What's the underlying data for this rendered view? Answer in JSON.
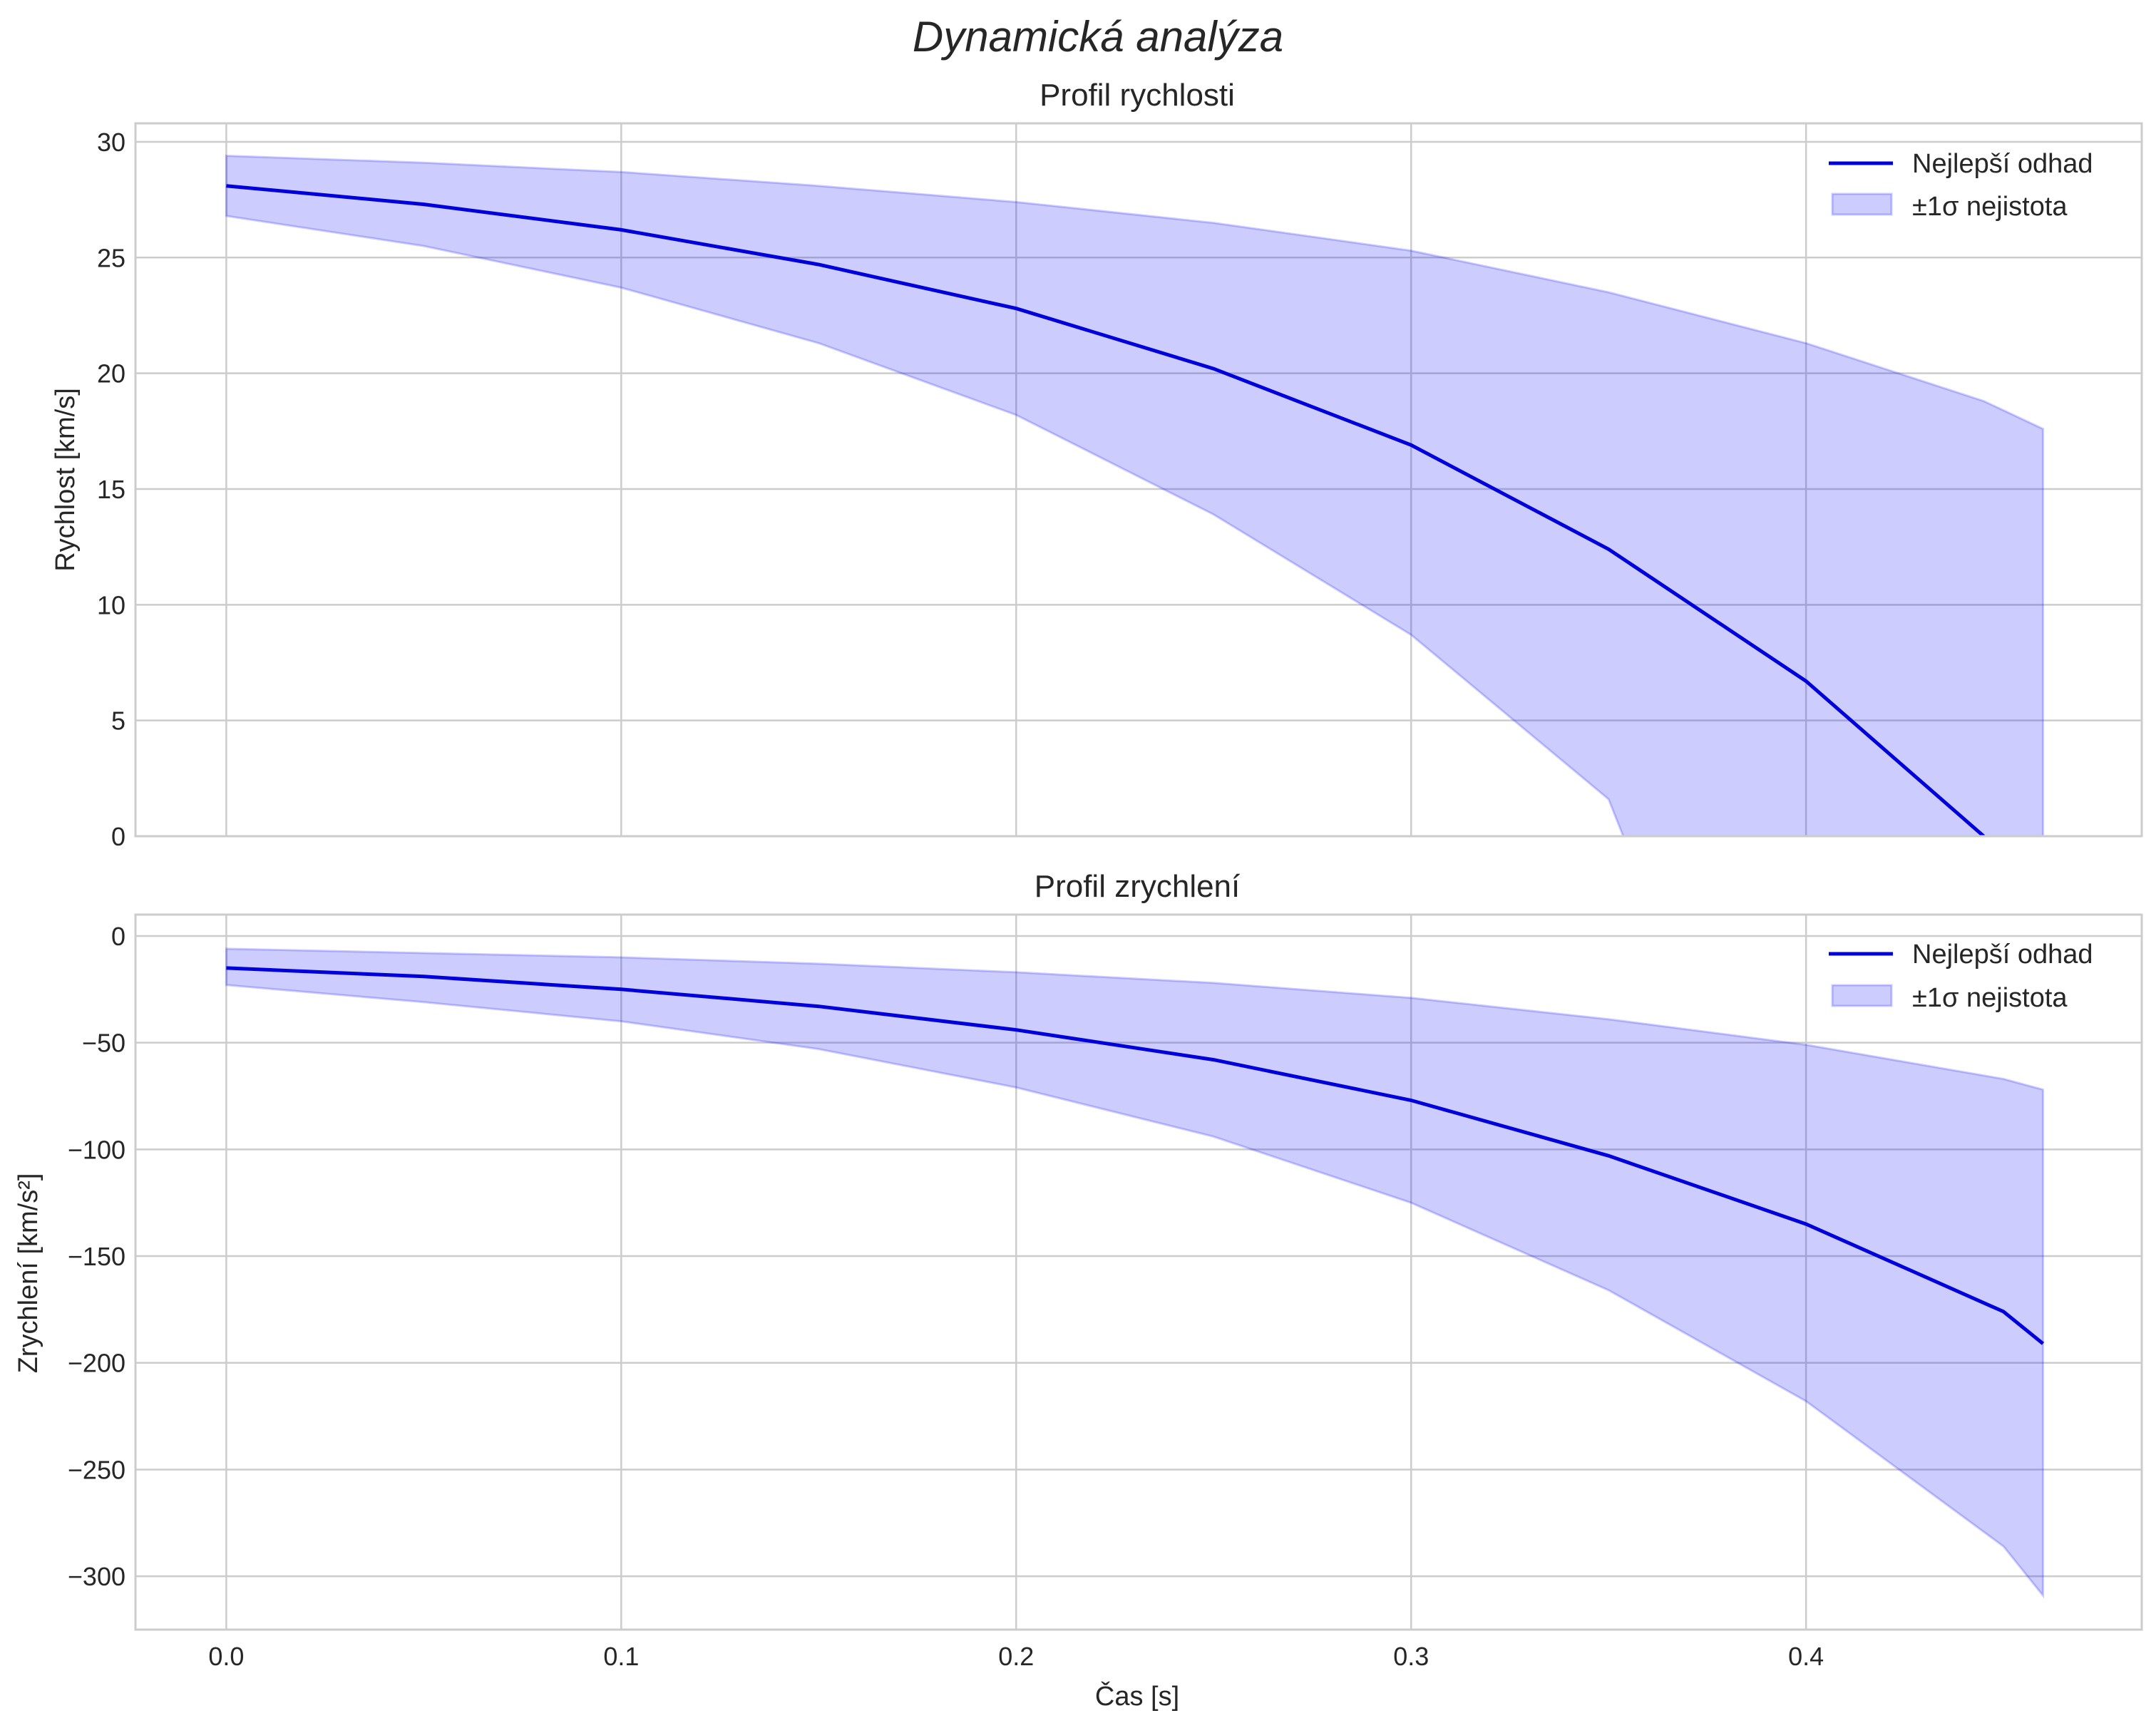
{
  "figure": {
    "title": "Dynamická analýza",
    "xlabel": "Čas [s]"
  },
  "chart_data": [
    {
      "type": "line",
      "title": "Profil rychlosti",
      "xlabel": "",
      "ylabel": "Rychlost [km/s]",
      "xlim": [
        -0.023,
        0.485
      ],
      "ylim": [
        0,
        30.8
      ],
      "grid": true,
      "legend_position": "top-right",
      "xticks": [
        0.0,
        0.1,
        0.2,
        0.3,
        0.4
      ],
      "xtick_labels": [
        "0.0",
        "0.1",
        "0.2",
        "0.3",
        "0.4"
      ],
      "xtick_labels_visible": false,
      "yticks": [
        0,
        5,
        10,
        15,
        20,
        25,
        30
      ],
      "ytick_labels": [
        "0",
        "5",
        "10",
        "15",
        "20",
        "25",
        "30"
      ],
      "x": [
        0.0,
        0.05,
        0.1,
        0.15,
        0.2,
        0.25,
        0.3,
        0.35,
        0.4,
        0.445,
        0.46
      ],
      "series": [
        {
          "name": "Nejlepší odhad",
          "kind": "line",
          "color": "#0000dd",
          "values": [
            28.1,
            27.3,
            26.2,
            24.7,
            22.8,
            20.2,
            16.9,
            12.4,
            6.7,
            0.0,
            null
          ]
        },
        {
          "name": "±1σ nejistota",
          "kind": "band",
          "color": "#0000ff",
          "lower": [
            26.8,
            25.5,
            23.7,
            21.3,
            18.2,
            13.9,
            8.7,
            1.6,
            null,
            null,
            null
          ],
          "upper": [
            29.4,
            29.1,
            28.7,
            28.1,
            27.4,
            26.5,
            25.3,
            23.5,
            21.3,
            18.8,
            17.6
          ]
        }
      ]
    },
    {
      "type": "line",
      "title": "Profil zrychlení",
      "xlabel": "Čas [s]",
      "ylabel": "Zrychlení [km/s²]",
      "xlim": [
        -0.023,
        0.485
      ],
      "ylim": [
        -325,
        10
      ],
      "grid": true,
      "legend_position": "top-right",
      "xticks": [
        0.0,
        0.1,
        0.2,
        0.3,
        0.4
      ],
      "xtick_labels": [
        "0.0",
        "0.1",
        "0.2",
        "0.3",
        "0.4"
      ],
      "xtick_labels_visible": true,
      "yticks": [
        0,
        -50,
        -100,
        -150,
        -200,
        -250,
        -300
      ],
      "ytick_labels": [
        "0",
        "−50",
        "−100",
        "−150",
        "−200",
        "−250",
        "−300"
      ],
      "x": [
        0.0,
        0.05,
        0.1,
        0.15,
        0.2,
        0.25,
        0.3,
        0.35,
        0.4,
        0.45,
        0.46
      ],
      "series": [
        {
          "name": "Nejlepší odhad",
          "kind": "line",
          "color": "#0000dd",
          "values": [
            -15,
            -19,
            -25,
            -33,
            -44,
            -58,
            -77,
            -103,
            -135,
            -176,
            -191
          ]
        },
        {
          "name": "±1σ nejistota",
          "kind": "band",
          "color": "#0000ff",
          "lower": [
            -23,
            -31,
            -40,
            -53,
            -71,
            -94,
            -125,
            -166,
            -218,
            -286,
            -309
          ],
          "upper": [
            -6,
            -8,
            -10,
            -13,
            -17,
            -22,
            -29,
            -39,
            -51,
            -67,
            -72
          ]
        }
      ]
    }
  ]
}
